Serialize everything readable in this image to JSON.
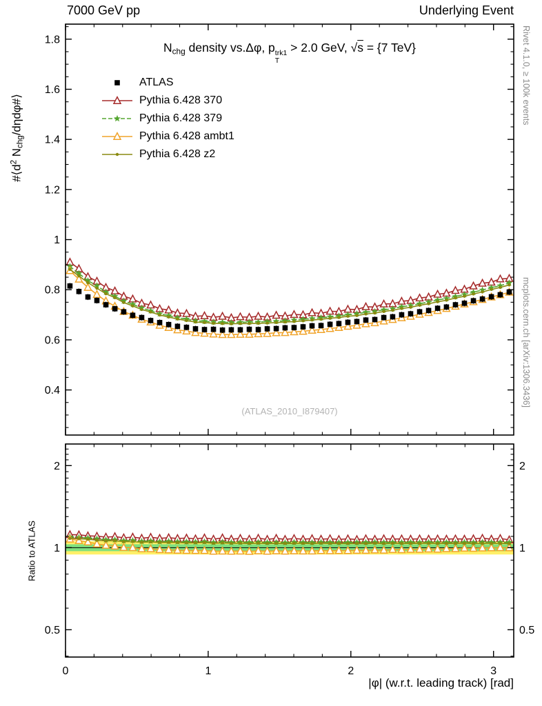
{
  "header": {
    "left": "7000 GeV pp",
    "right": "Underlying Event"
  },
  "side_notes": {
    "right_top": "Rivet 4.1.0, ≥ 100k events",
    "right_bottom": "mcplots.cern.ch [arXiv:1306.3436]"
  },
  "watermark": "(ATLAS_2010_I879407)",
  "main_panel": {
    "title_segments": [
      {
        "text": "N"
      },
      {
        "text": "chg",
        "pos": "sub"
      },
      {
        "text": " density vs.Δφ, p"
      },
      {
        "stack_top": "trk1",
        "stack_bottom": "T"
      },
      {
        "text": " > 2.0 GeV, "
      },
      {
        "text": "√"
      },
      {
        "text": "s",
        "overline": true
      },
      {
        "text": " = {7 TeV}"
      }
    ],
    "ylabel_segments": [
      {
        "text": "#⟨d"
      },
      {
        "text": "2",
        "pos": "sup"
      },
      {
        "text": " N"
      },
      {
        "text": "chg",
        "pos": "sub"
      },
      {
        "text": "/dηdφ#⟩"
      }
    ]
  },
  "ratio_panel": {
    "ylabel": "Ratio to ATLAS"
  },
  "xaxis": {
    "label": "|φ| (w.r.t. leading track) [rad]"
  },
  "chart_data": {
    "type": "line",
    "title": "Nchg density vs. Δφ, pT^trk1 > 2.0 GeV, sqrt(s) = 7 TeV",
    "xlabel": "|φ| (w.r.t. leading track) [rad]",
    "ylabel": "#⟨d2 Nchg/dηdφ#⟩",
    "ratio_ylabel": "Ratio to ATLAS",
    "legend_position": "top-left",
    "grid": false,
    "xlim": [
      0,
      3.1416
    ],
    "ylim": [
      0.22,
      1.86
    ],
    "ratio_ylim": [
      0.397,
      2.4
    ],
    "ratio_scale": "log",
    "x_ticks": {
      "values": [
        0,
        1,
        2,
        3
      ],
      "labels": [
        "0",
        "1",
        "2",
        "3"
      ]
    },
    "main_y_ticks": {
      "values": [
        0.4,
        0.6,
        0.8,
        1,
        1.2,
        1.4,
        1.6,
        1.8
      ],
      "labels": [
        "0.4",
        "0.6",
        "0.8",
        "1",
        "1.2",
        "1.4",
        "1.6",
        "1.8"
      ]
    },
    "ratio_y_ticks": {
      "values": [
        0.5,
        1,
        2
      ],
      "labels": [
        "0.5",
        "1",
        "2"
      ],
      "minors": [
        0.4,
        0.6,
        0.7,
        0.8,
        0.9,
        1.1,
        1.2,
        1.3,
        1.4,
        1.5,
        1.6,
        1.7,
        1.8,
        1.9,
        2.1,
        2.2,
        2.3,
        2.4
      ]
    },
    "atlas_error": 0.012,
    "ratio_reference": 1,
    "ratio_bands": [
      {
        "color": "#fff068",
        "lo": 0.944,
        "hi": 1.056
      },
      {
        "color": "#7fe07f",
        "lo": 0.971,
        "hi": 1.029
      }
    ],
    "x": [
      0.031,
      0.094,
      0.157,
      0.22,
      0.283,
      0.346,
      0.408,
      0.471,
      0.534,
      0.597,
      0.66,
      0.723,
      0.785,
      0.848,
      0.911,
      0.974,
      1.037,
      1.1,
      1.162,
      1.225,
      1.288,
      1.351,
      1.414,
      1.477,
      1.539,
      1.602,
      1.665,
      1.728,
      1.791,
      1.854,
      1.916,
      1.979,
      2.042,
      2.105,
      2.168,
      2.231,
      2.293,
      2.356,
      2.419,
      2.482,
      2.545,
      2.608,
      2.67,
      2.733,
      2.796,
      2.859,
      2.922,
      2.985,
      3.047,
      3.11
    ],
    "series": [
      {
        "name": "ATLAS",
        "kind": "data",
        "color": "#000000",
        "marker": "square-filled",
        "values": [
          0.815,
          0.793,
          0.771,
          0.757,
          0.74,
          0.724,
          0.712,
          0.698,
          0.689,
          0.677,
          0.669,
          0.661,
          0.654,
          0.65,
          0.644,
          0.641,
          0.642,
          0.639,
          0.64,
          0.64,
          0.642,
          0.641,
          0.644,
          0.645,
          0.648,
          0.649,
          0.652,
          0.656,
          0.657,
          0.662,
          0.665,
          0.67,
          0.673,
          0.679,
          0.681,
          0.689,
          0.692,
          0.7,
          0.704,
          0.712,
          0.717,
          0.726,
          0.731,
          0.74,
          0.746,
          0.756,
          0.763,
          0.772,
          0.78,
          0.791
        ]
      },
      {
        "name": "Pythia 6.428 370",
        "kind": "mc",
        "color": "#a52a2a",
        "marker": "triangle-open",
        "line": "solid",
        "values": [
          0.91,
          0.884,
          0.852,
          0.834,
          0.809,
          0.795,
          0.774,
          0.763,
          0.746,
          0.739,
          0.724,
          0.719,
          0.707,
          0.705,
          0.694,
          0.696,
          0.69,
          0.694,
          0.688,
          0.692,
          0.69,
          0.694,
          0.691,
          0.698,
          0.695,
          0.701,
          0.7,
          0.708,
          0.706,
          0.714,
          0.713,
          0.722,
          0.721,
          0.732,
          0.731,
          0.743,
          0.744,
          0.754,
          0.757,
          0.767,
          0.771,
          0.782,
          0.786,
          0.797,
          0.802,
          0.815,
          0.826,
          0.83,
          0.843,
          0.845
        ]
      },
      {
        "name": "Pythia 6.428 379",
        "kind": "mc",
        "color": "#55a630",
        "marker": "star",
        "line": "dashed",
        "values": [
          0.893,
          0.865,
          0.836,
          0.816,
          0.791,
          0.774,
          0.755,
          0.742,
          0.727,
          0.716,
          0.704,
          0.697,
          0.688,
          0.683,
          0.676,
          0.674,
          0.671,
          0.67,
          0.669,
          0.67,
          0.671,
          0.671,
          0.673,
          0.674,
          0.676,
          0.679,
          0.682,
          0.685,
          0.688,
          0.692,
          0.695,
          0.7,
          0.704,
          0.71,
          0.713,
          0.72,
          0.724,
          0.732,
          0.737,
          0.744,
          0.751,
          0.759,
          0.765,
          0.773,
          0.781,
          0.79,
          0.799,
          0.808,
          0.816,
          0.827
        ]
      },
      {
        "name": "Pythia 6.428 ambt1",
        "kind": "mc",
        "color": "#f0a32a",
        "marker": "triangle-open",
        "line": "solid",
        "values": [
          0.876,
          0.842,
          0.809,
          0.781,
          0.755,
          0.734,
          0.713,
          0.698,
          0.682,
          0.671,
          0.658,
          0.649,
          0.64,
          0.635,
          0.629,
          0.626,
          0.623,
          0.621,
          0.621,
          0.622,
          0.622,
          0.624,
          0.625,
          0.628,
          0.629,
          0.632,
          0.634,
          0.638,
          0.641,
          0.645,
          0.649,
          0.654,
          0.658,
          0.664,
          0.668,
          0.675,
          0.681,
          0.688,
          0.694,
          0.702,
          0.709,
          0.717,
          0.725,
          0.734,
          0.743,
          0.752,
          0.761,
          0.771,
          0.78,
          0.79
        ]
      },
      {
        "name": "Pythia 6.428 z2",
        "kind": "mc",
        "color": "#8a8a10",
        "marker": "dot",
        "line": "solid",
        "values": [
          0.881,
          0.855,
          0.828,
          0.806,
          0.784,
          0.768,
          0.749,
          0.735,
          0.721,
          0.711,
          0.699,
          0.691,
          0.683,
          0.677,
          0.671,
          0.669,
          0.666,
          0.665,
          0.664,
          0.665,
          0.665,
          0.666,
          0.667,
          0.669,
          0.671,
          0.673,
          0.676,
          0.679,
          0.682,
          0.686,
          0.689,
          0.694,
          0.697,
          0.703,
          0.707,
          0.713,
          0.718,
          0.725,
          0.73,
          0.738,
          0.744,
          0.752,
          0.758,
          0.767,
          0.774,
          0.783,
          0.791,
          0.801,
          0.809,
          0.819
        ]
      }
    ]
  }
}
